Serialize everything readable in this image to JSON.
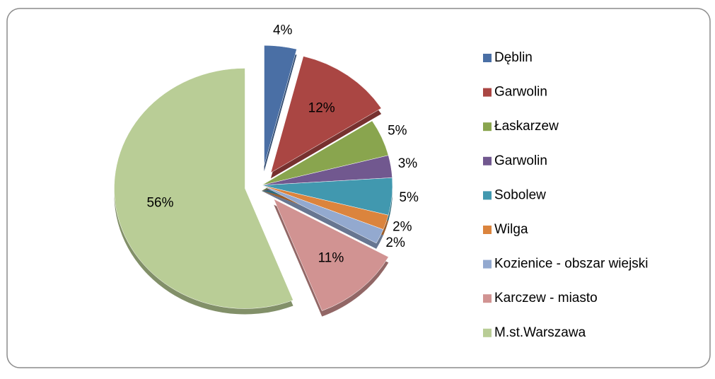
{
  "chart_data": {
    "type": "pie",
    "categories": [
      "Dęblin",
      "Garwolin",
      "Łaskarzew",
      "Garwolin",
      "Sobolew",
      "Wilga",
      "Kozienice - obszar wiejski",
      "Karczew - miasto",
      "M.st.Warszawa"
    ],
    "values": [
      4,
      12,
      5,
      3,
      5,
      2,
      2,
      11,
      56
    ],
    "value_labels": [
      "4%",
      "12%",
      "5%",
      "3%",
      "5%",
      "2%",
      "2%",
      "11%",
      "56%"
    ],
    "colors": [
      "#4a6fa5",
      "#aa4643",
      "#89a54e",
      "#71588f",
      "#4198af",
      "#db843d",
      "#93a9cf",
      "#d19392",
      "#b9cd96"
    ],
    "legend": "right"
  }
}
